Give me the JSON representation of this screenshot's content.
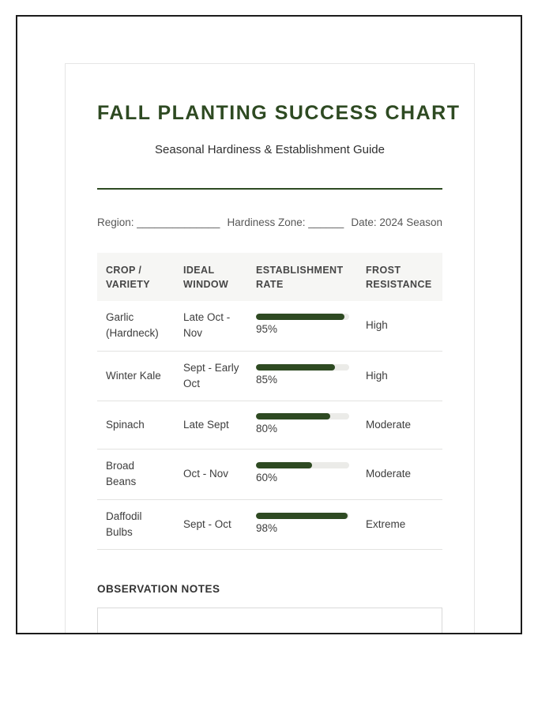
{
  "page": {
    "title": "FALL PLANTING SUCCESS CHART",
    "subtitle": "Seasonal Hardiness & Establishment Guide"
  },
  "meta_fields": {
    "region_label": "Region: ______________",
    "zone_label": "Hardiness Zone: ______",
    "date_label": "Date: 2024 Season"
  },
  "table": {
    "headers": [
      "CROP / VARIETY",
      "IDEAL WINDOW",
      "ESTABLISHMENT RATE",
      "FROST RESISTANCE"
    ],
    "rows": [
      {
        "crop": "Garlic (Hardneck)",
        "window": "Late Oct - Nov",
        "rate_pct": 95,
        "rate_label": "95%",
        "frost": "High"
      },
      {
        "crop": "Winter Kale",
        "window": "Sept - Early Oct",
        "rate_pct": 85,
        "rate_label": "85%",
        "frost": "High"
      },
      {
        "crop": "Spinach",
        "window": "Late Sept",
        "rate_pct": 80,
        "rate_label": "80%",
        "frost": "Moderate"
      },
      {
        "crop": "Broad Beans",
        "window": "Oct - Nov",
        "rate_pct": 60,
        "rate_label": "60%",
        "frost": "Moderate"
      },
      {
        "crop": "Daffodil Bulbs",
        "window": "Sept - Oct",
        "rate_pct": 98,
        "rate_label": "98%",
        "frost": "Extreme"
      }
    ]
  },
  "notes": {
    "heading": "OBSERVATION NOTES"
  },
  "colors": {
    "accent_green": "#2e4a22",
    "bar_track": "#ebebe8",
    "header_bg": "#f6f6f4",
    "frame_border": "#1b1b1b"
  }
}
